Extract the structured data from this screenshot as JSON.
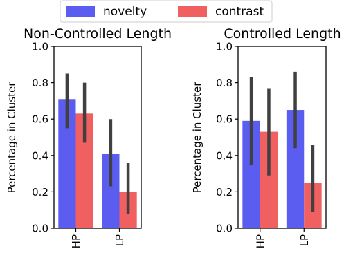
{
  "legend": {
    "placement": "top-center",
    "entries": [
      {
        "label": "novelty",
        "color": "#5b5cf0"
      },
      {
        "label": "contrast",
        "color": "#f06060"
      }
    ]
  },
  "colors": {
    "novelty": "#5b5cf0",
    "contrast": "#f06060",
    "error_bar": "#404040"
  },
  "chart_data": [
    {
      "type": "bar",
      "title": "Non-Controlled Length",
      "xlabel": "",
      "ylabel": "Percentage in Cluster",
      "categories": [
        "HP",
        "LP"
      ],
      "ylim": [
        0,
        1.0
      ],
      "yticks": [
        "0.0",
        "0.2",
        "0.4",
        "0.6",
        "0.8",
        "1.0"
      ],
      "grid": false,
      "series": [
        {
          "name": "novelty",
          "values": [
            0.71,
            0.41
          ],
          "err_low": [
            0.55,
            0.23
          ],
          "err_high": [
            0.85,
            0.6
          ]
        },
        {
          "name": "contrast",
          "values": [
            0.63,
            0.2
          ],
          "err_low": [
            0.47,
            0.08
          ],
          "err_high": [
            0.8,
            0.36
          ]
        }
      ]
    },
    {
      "type": "bar",
      "title": "Controlled Length",
      "xlabel": "",
      "ylabel": "Percentage in Cluster",
      "categories": [
        "HP",
        "LP"
      ],
      "ylim": [
        0,
        1.0
      ],
      "yticks": [
        "0.0",
        "0.2",
        "0.4",
        "0.6",
        "0.8",
        "1.0"
      ],
      "grid": false,
      "series": [
        {
          "name": "novelty",
          "values": [
            0.59,
            0.65
          ],
          "err_low": [
            0.35,
            0.44
          ],
          "err_high": [
            0.83,
            0.86
          ]
        },
        {
          "name": "contrast",
          "values": [
            0.53,
            0.25
          ],
          "err_low": [
            0.29,
            0.09
          ],
          "err_high": [
            0.77,
            0.46
          ]
        }
      ]
    }
  ]
}
